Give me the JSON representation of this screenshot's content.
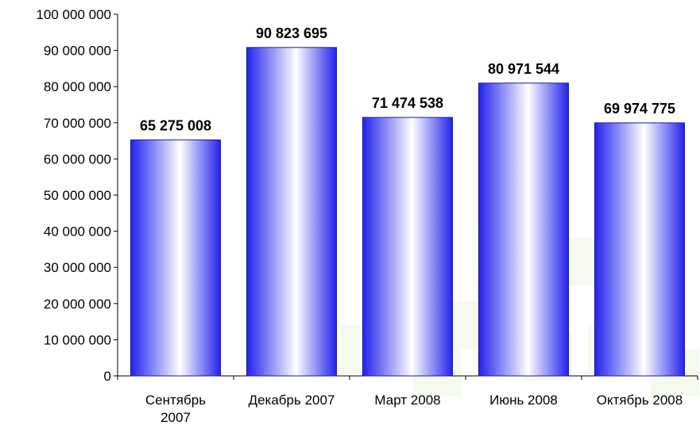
{
  "chart_data": {
    "type": "bar",
    "categories": [
      "Сентябрь 2007",
      "Декабрь 2007",
      "Март 2008",
      "Июнь 2008",
      "Октябрь 2008"
    ],
    "category_lines": [
      [
        "Сентябрь",
        "2007"
      ],
      [
        "Декабрь 2007"
      ],
      [
        "Март 2008"
      ],
      [
        "Июнь 2008"
      ],
      [
        "Октябрь 2008"
      ]
    ],
    "values": [
      65275008,
      90823695,
      71474538,
      80971544,
      69974775
    ],
    "value_labels": [
      "65 275 008",
      "90 823 695",
      "71 474 538",
      "80 971 544",
      "69 974 775"
    ],
    "ylim": [
      0,
      100000000
    ],
    "yticks": [
      0,
      10000000,
      20000000,
      30000000,
      40000000,
      50000000,
      60000000,
      70000000,
      80000000,
      90000000,
      100000000
    ],
    "ytick_labels": [
      "0",
      "10 000 000",
      "20 000 000",
      "30 000 000",
      "40 000 000",
      "50 000 000",
      "60 000 000",
      "70 000 000",
      "80 000 000",
      "90 000 000",
      "100 000 000"
    ],
    "title": "",
    "xlabel": "",
    "ylabel": "",
    "grid": false,
    "legend": "none"
  },
  "colors": {
    "bar_edge": "#1a1aa0",
    "bar_dark": "#2222ee",
    "bar_light": "#ffffff",
    "axis": "#000000",
    "bg_pattern": "#eef6e2"
  }
}
